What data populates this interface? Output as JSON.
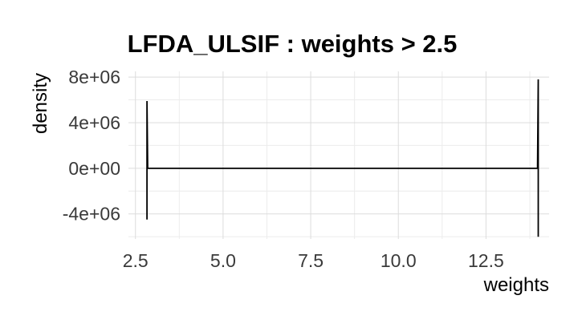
{
  "chart_data": {
    "type": "line",
    "title": "LFDA_ULSIF : weights > 2.5",
    "xlabel": "weights",
    "ylabel": "density",
    "xlim": [
      2.3,
      14.3
    ],
    "ylim": [
      -6200000,
      8500000
    ],
    "x_ticks": [
      2.5,
      5.0,
      7.5,
      10.0,
      12.5
    ],
    "x_tick_labels": [
      "2.5",
      "5.0",
      "7.5",
      "10.0",
      "12.5"
    ],
    "y_ticks": [
      -4000000,
      0,
      4000000,
      8000000
    ],
    "y_tick_labels": [
      "-4e+06",
      "0e+00",
      "4e+06",
      "8e+06"
    ],
    "grid": true,
    "legend": "none",
    "series": [
      {
        "color": "#000000",
        "x": [
          2.83,
          2.83,
          2.85,
          13.97,
          13.99,
          13.99
        ],
        "y": [
          -4500000,
          5900000,
          0,
          0,
          7800000,
          -6000000
        ]
      }
    ]
  }
}
